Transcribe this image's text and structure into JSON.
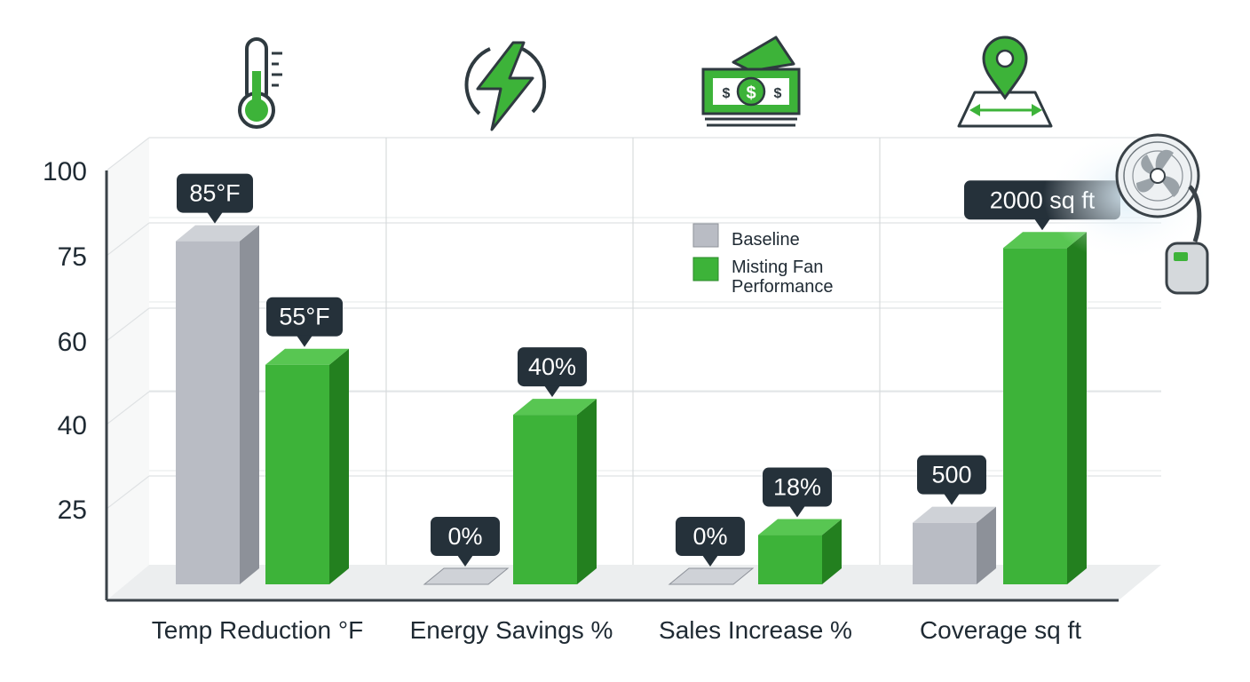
{
  "chart_data": {
    "type": "bar",
    "title": "",
    "xlabel": "",
    "ylabel": "",
    "yticks": [
      25,
      40,
      60,
      75,
      100
    ],
    "categories": [
      "Temp Reduction °F",
      "Energy Savings %",
      "Sales Increase %",
      "Coverage sq ft"
    ],
    "series": [
      {
        "name": "Baseline",
        "color": "#b9bcc4",
        "values": [
          85,
          0,
          0,
          500
        ],
        "labels": [
          "85°F",
          "0%",
          "0%",
          "500"
        ],
        "heights": [
          85,
          0,
          0,
          26
        ]
      },
      {
        "name": "Misting Fan Performance",
        "color": "#3db339",
        "values": [
          55,
          40,
          18,
          2000
        ],
        "labels": [
          "55°F",
          "40%",
          "18%",
          "2000 sq ft"
        ],
        "heights": [
          59,
          47,
          22,
          83
        ]
      }
    ],
    "category_icons": [
      "thermometer-icon",
      "lightning-bolt-icon",
      "money-bills-icon",
      "map-pin-icon"
    ],
    "legend_position": "center-right",
    "grid": true
  }
}
